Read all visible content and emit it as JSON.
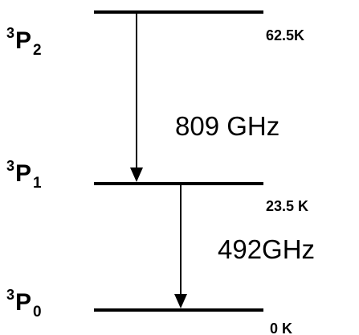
{
  "levels": [
    {
      "multiplicity": "3",
      "letter": "P",
      "j": "2",
      "energy": "62.5K"
    },
    {
      "multiplicity": "3",
      "letter": "P",
      "j": "1",
      "energy": "23.5 K"
    },
    {
      "multiplicity": "3",
      "letter": "P",
      "j": "0",
      "energy": "0 K"
    }
  ],
  "transitions": [
    {
      "label": "809 GHz"
    },
    {
      "label": "492GHz"
    }
  ]
}
